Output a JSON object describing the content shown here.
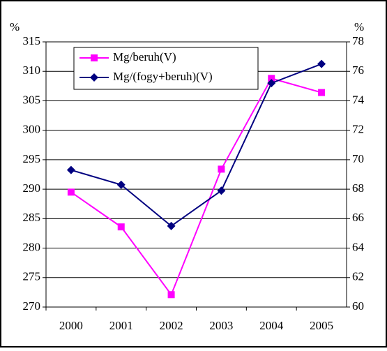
{
  "chart_data": {
    "type": "line",
    "y_unit": "%",
    "y2_unit": "%",
    "categories": [
      "2000",
      "2001",
      "2002",
      "2003",
      "2004",
      "2005"
    ],
    "series": [
      {
        "name": "Mg/beruh(V)",
        "color": "#ff00ff",
        "marker": "square",
        "values": [
          289.5,
          283.6,
          272.1,
          293.4,
          308.8,
          306.4
        ]
      },
      {
        "name": "Mg/(fogy+beruh)(V)",
        "color": "#000080",
        "marker": "diamond",
        "axis": "y2",
        "values": [
          69.3,
          68.3,
          65.5,
          67.9,
          75.2,
          76.5
        ]
      }
    ],
    "ylim": [
      270,
      315
    ],
    "yticks": [
      270,
      275,
      280,
      285,
      290,
      295,
      300,
      305,
      310,
      315
    ],
    "y2lim": [
      60,
      78
    ],
    "y2ticks": [
      60,
      62,
      64,
      66,
      68,
      70,
      72,
      74,
      76,
      78
    ],
    "grid": true,
    "legend": "top-left"
  }
}
